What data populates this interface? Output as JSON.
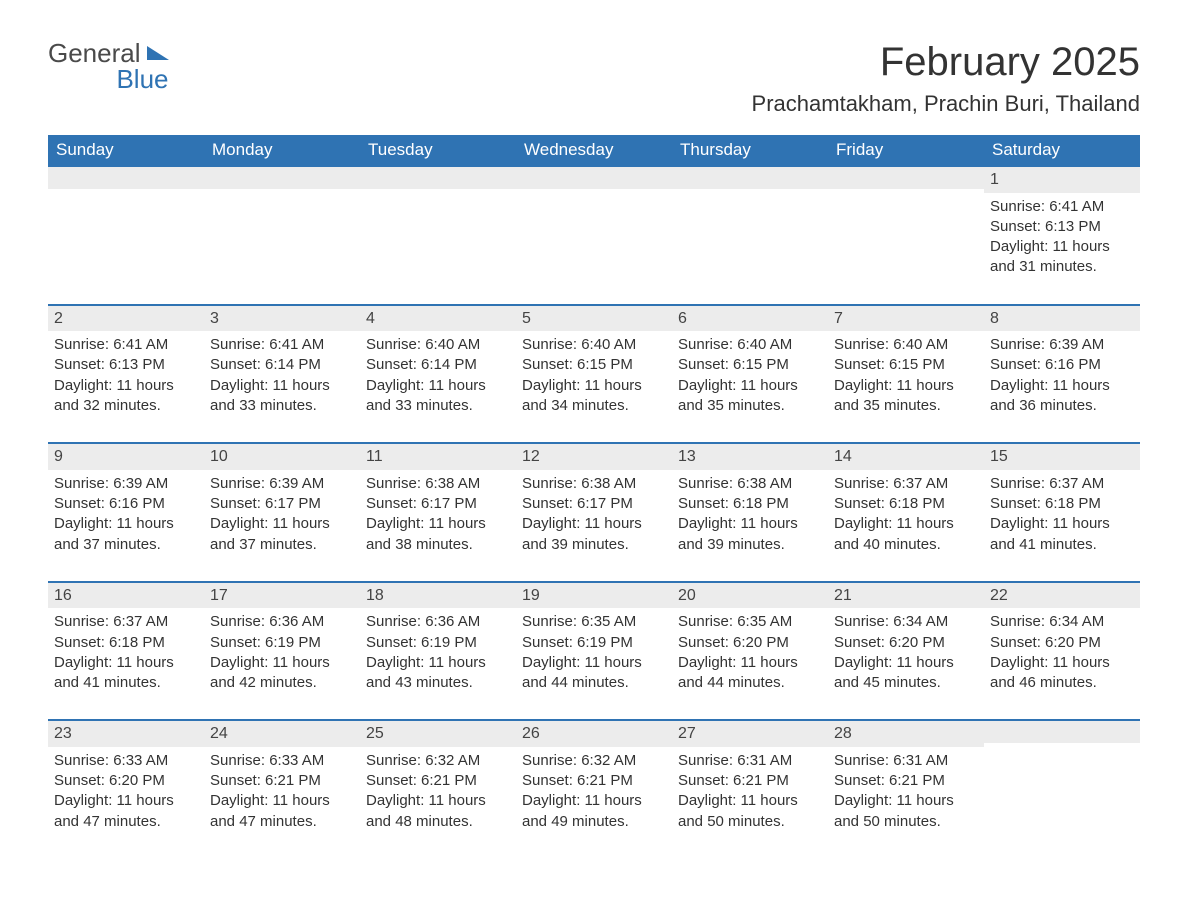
{
  "brand": {
    "word1": "General",
    "word2": "Blue"
  },
  "title": "February 2025",
  "location": "Prachamtakham, Prachin Buri, Thailand",
  "dayHeaders": [
    "Sunday",
    "Monday",
    "Tuesday",
    "Wednesday",
    "Thursday",
    "Friday",
    "Saturday"
  ],
  "colors": {
    "header_bg": "#2f73b3",
    "header_text": "#ffffff",
    "row_divider": "#2f73b3",
    "daynum_bg": "#ececec",
    "text": "#333333",
    "page_bg": "#ffffff"
  },
  "typography": {
    "title_fontsize": 40,
    "location_fontsize": 22,
    "header_fontsize": 17,
    "body_fontsize": 15,
    "font_family": "Segoe UI, Arial, sans-serif"
  },
  "layout": {
    "columns": 7,
    "rows": 5,
    "first_day_column_index": 6
  },
  "weeks": [
    [
      null,
      null,
      null,
      null,
      null,
      null,
      {
        "n": "1",
        "sunrise": "Sunrise: 6:41 AM",
        "sunset": "Sunset: 6:13 PM",
        "daylight1": "Daylight: 11 hours",
        "daylight2": "and 31 minutes."
      }
    ],
    [
      {
        "n": "2",
        "sunrise": "Sunrise: 6:41 AM",
        "sunset": "Sunset: 6:13 PM",
        "daylight1": "Daylight: 11 hours",
        "daylight2": "and 32 minutes."
      },
      {
        "n": "3",
        "sunrise": "Sunrise: 6:41 AM",
        "sunset": "Sunset: 6:14 PM",
        "daylight1": "Daylight: 11 hours",
        "daylight2": "and 33 minutes."
      },
      {
        "n": "4",
        "sunrise": "Sunrise: 6:40 AM",
        "sunset": "Sunset: 6:14 PM",
        "daylight1": "Daylight: 11 hours",
        "daylight2": "and 33 minutes."
      },
      {
        "n": "5",
        "sunrise": "Sunrise: 6:40 AM",
        "sunset": "Sunset: 6:15 PM",
        "daylight1": "Daylight: 11 hours",
        "daylight2": "and 34 minutes."
      },
      {
        "n": "6",
        "sunrise": "Sunrise: 6:40 AM",
        "sunset": "Sunset: 6:15 PM",
        "daylight1": "Daylight: 11 hours",
        "daylight2": "and 35 minutes."
      },
      {
        "n": "7",
        "sunrise": "Sunrise: 6:40 AM",
        "sunset": "Sunset: 6:15 PM",
        "daylight1": "Daylight: 11 hours",
        "daylight2": "and 35 minutes."
      },
      {
        "n": "8",
        "sunrise": "Sunrise: 6:39 AM",
        "sunset": "Sunset: 6:16 PM",
        "daylight1": "Daylight: 11 hours",
        "daylight2": "and 36 minutes."
      }
    ],
    [
      {
        "n": "9",
        "sunrise": "Sunrise: 6:39 AM",
        "sunset": "Sunset: 6:16 PM",
        "daylight1": "Daylight: 11 hours",
        "daylight2": "and 37 minutes."
      },
      {
        "n": "10",
        "sunrise": "Sunrise: 6:39 AM",
        "sunset": "Sunset: 6:17 PM",
        "daylight1": "Daylight: 11 hours",
        "daylight2": "and 37 minutes."
      },
      {
        "n": "11",
        "sunrise": "Sunrise: 6:38 AM",
        "sunset": "Sunset: 6:17 PM",
        "daylight1": "Daylight: 11 hours",
        "daylight2": "and 38 minutes."
      },
      {
        "n": "12",
        "sunrise": "Sunrise: 6:38 AM",
        "sunset": "Sunset: 6:17 PM",
        "daylight1": "Daylight: 11 hours",
        "daylight2": "and 39 minutes."
      },
      {
        "n": "13",
        "sunrise": "Sunrise: 6:38 AM",
        "sunset": "Sunset: 6:18 PM",
        "daylight1": "Daylight: 11 hours",
        "daylight2": "and 39 minutes."
      },
      {
        "n": "14",
        "sunrise": "Sunrise: 6:37 AM",
        "sunset": "Sunset: 6:18 PM",
        "daylight1": "Daylight: 11 hours",
        "daylight2": "and 40 minutes."
      },
      {
        "n": "15",
        "sunrise": "Sunrise: 6:37 AM",
        "sunset": "Sunset: 6:18 PM",
        "daylight1": "Daylight: 11 hours",
        "daylight2": "and 41 minutes."
      }
    ],
    [
      {
        "n": "16",
        "sunrise": "Sunrise: 6:37 AM",
        "sunset": "Sunset: 6:18 PM",
        "daylight1": "Daylight: 11 hours",
        "daylight2": "and 41 minutes."
      },
      {
        "n": "17",
        "sunrise": "Sunrise: 6:36 AM",
        "sunset": "Sunset: 6:19 PM",
        "daylight1": "Daylight: 11 hours",
        "daylight2": "and 42 minutes."
      },
      {
        "n": "18",
        "sunrise": "Sunrise: 6:36 AM",
        "sunset": "Sunset: 6:19 PM",
        "daylight1": "Daylight: 11 hours",
        "daylight2": "and 43 minutes."
      },
      {
        "n": "19",
        "sunrise": "Sunrise: 6:35 AM",
        "sunset": "Sunset: 6:19 PM",
        "daylight1": "Daylight: 11 hours",
        "daylight2": "and 44 minutes."
      },
      {
        "n": "20",
        "sunrise": "Sunrise: 6:35 AM",
        "sunset": "Sunset: 6:20 PM",
        "daylight1": "Daylight: 11 hours",
        "daylight2": "and 44 minutes."
      },
      {
        "n": "21",
        "sunrise": "Sunrise: 6:34 AM",
        "sunset": "Sunset: 6:20 PM",
        "daylight1": "Daylight: 11 hours",
        "daylight2": "and 45 minutes."
      },
      {
        "n": "22",
        "sunrise": "Sunrise: 6:34 AM",
        "sunset": "Sunset: 6:20 PM",
        "daylight1": "Daylight: 11 hours",
        "daylight2": "and 46 minutes."
      }
    ],
    [
      {
        "n": "23",
        "sunrise": "Sunrise: 6:33 AM",
        "sunset": "Sunset: 6:20 PM",
        "daylight1": "Daylight: 11 hours",
        "daylight2": "and 47 minutes."
      },
      {
        "n": "24",
        "sunrise": "Sunrise: 6:33 AM",
        "sunset": "Sunset: 6:21 PM",
        "daylight1": "Daylight: 11 hours",
        "daylight2": "and 47 minutes."
      },
      {
        "n": "25",
        "sunrise": "Sunrise: 6:32 AM",
        "sunset": "Sunset: 6:21 PM",
        "daylight1": "Daylight: 11 hours",
        "daylight2": "and 48 minutes."
      },
      {
        "n": "26",
        "sunrise": "Sunrise: 6:32 AM",
        "sunset": "Sunset: 6:21 PM",
        "daylight1": "Daylight: 11 hours",
        "daylight2": "and 49 minutes."
      },
      {
        "n": "27",
        "sunrise": "Sunrise: 6:31 AM",
        "sunset": "Sunset: 6:21 PM",
        "daylight1": "Daylight: 11 hours",
        "daylight2": "and 50 minutes."
      },
      {
        "n": "28",
        "sunrise": "Sunrise: 6:31 AM",
        "sunset": "Sunset: 6:21 PM",
        "daylight1": "Daylight: 11 hours",
        "daylight2": "and 50 minutes."
      },
      null
    ]
  ]
}
